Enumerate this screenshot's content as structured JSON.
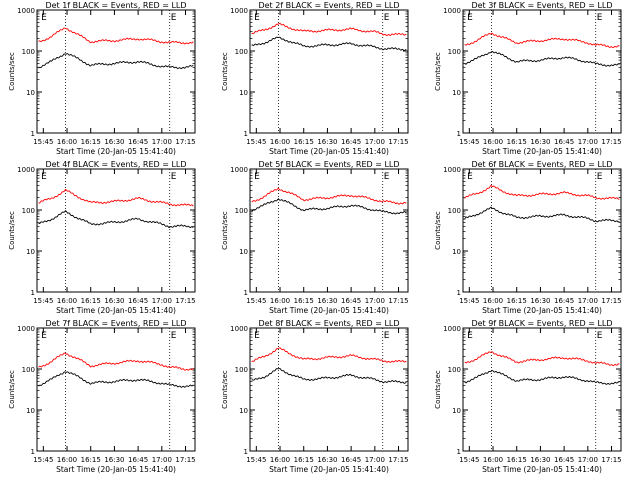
{
  "chart_data": [
    {
      "type": "line",
      "title": "Det 1f BLACK = Events, RED = LLD",
      "xlabel": "Start Time (20-Jan-05 15:41:40)",
      "ylabel": "Counts/sec",
      "x_ticks": [
        "15:45",
        "16:00",
        "16:15",
        "16:30",
        "16:45",
        "17:00",
        "17:15"
      ],
      "y_scale": "log",
      "ylim": [
        1,
        1000
      ],
      "y_ticks": [
        "1",
        "10",
        "100",
        "1000"
      ],
      "markers": [
        {
          "label": "E",
          "x": "15:43"
        },
        {
          "label": "E",
          "x": "17:05"
        }
      ],
      "vlines": [
        "15:59",
        "17:05"
      ],
      "series": [
        {
          "name": "LLD",
          "color": "#ff0000",
          "x": [
            "15:42",
            "15:50",
            "15:59",
            "16:05",
            "16:15",
            "16:30",
            "16:45",
            "17:00",
            "17:05",
            "17:15",
            "17:20"
          ],
          "values": [
            170,
            220,
            380,
            270,
            170,
            180,
            200,
            170,
            160,
            160,
            160
          ]
        },
        {
          "name": "Events",
          "color": "#000000",
          "x": [
            "15:42",
            "15:50",
            "15:59",
            "16:05",
            "16:15",
            "16:30",
            "16:45",
            "17:00",
            "17:05",
            "17:15",
            "17:20"
          ],
          "values": [
            40,
            55,
            90,
            70,
            45,
            50,
            55,
            42,
            40,
            40,
            42
          ]
        }
      ]
    },
    {
      "type": "line",
      "title": "Det 2f BLACK = Events, RED = LLD",
      "xlabel": "Start Time (20-Jan-05 15:41:40)",
      "ylabel": "Counts/sec",
      "x_ticks": [
        "15:45",
        "16:00",
        "16:15",
        "16:30",
        "16:45",
        "17:00",
        "17:15"
      ],
      "y_scale": "log",
      "ylim": [
        1,
        1000
      ],
      "y_ticks": [
        "1",
        "10",
        "100",
        "1000"
      ],
      "markers": [
        {
          "label": "E",
          "x": "15:43"
        },
        {
          "label": "E",
          "x": "17:05"
        }
      ],
      "vlines": [
        "15:59",
        "17:05"
      ],
      "series": [
        {
          "name": "LLD",
          "color": "#ff0000",
          "x": [
            "15:42",
            "15:50",
            "15:59",
            "16:05",
            "16:15",
            "16:30",
            "16:45",
            "17:00",
            "17:05",
            "17:15",
            "17:20"
          ],
          "values": [
            260,
            330,
            450,
            380,
            300,
            320,
            340,
            290,
            260,
            250,
            250
          ]
        },
        {
          "name": "Events",
          "color": "#000000",
          "x": [
            "15:42",
            "15:50",
            "15:59",
            "16:05",
            "16:15",
            "16:30",
            "16:45",
            "17:00",
            "17:05",
            "17:15",
            "17:20"
          ],
          "values": [
            130,
            160,
            210,
            180,
            130,
            140,
            150,
            125,
            115,
            110,
            110
          ]
        }
      ]
    },
    {
      "type": "line",
      "title": "Det 3f BLACK = Events, RED = LLD",
      "xlabel": "Start Time (20-Jan-05 15:41:40)",
      "ylabel": "Counts/sec",
      "x_ticks": [
        "15:45",
        "16:00",
        "16:15",
        "16:30",
        "16:45",
        "17:00",
        "17:15"
      ],
      "y_scale": "log",
      "ylim": [
        1,
        1000
      ],
      "y_ticks": [
        "1",
        "10",
        "100",
        "1000"
      ],
      "markers": [
        {
          "label": "E",
          "x": "15:43"
        },
        {
          "label": "E",
          "x": "17:05"
        }
      ],
      "vlines": [
        "15:59",
        "17:05"
      ],
      "series": [
        {
          "name": "LLD",
          "color": "#ff0000",
          "x": [
            "15:42",
            "15:50",
            "15:59",
            "16:05",
            "16:15",
            "16:30",
            "16:45",
            "17:00",
            "17:05",
            "17:15",
            "17:20"
          ],
          "values": [
            140,
            180,
            280,
            220,
            160,
            180,
            200,
            160,
            140,
            130,
            130
          ]
        },
        {
          "name": "Events",
          "color": "#000000",
          "x": [
            "15:42",
            "15:50",
            "15:59",
            "16:05",
            "16:15",
            "16:30",
            "16:45",
            "17:00",
            "17:05",
            "17:15",
            "17:20"
          ],
          "values": [
            50,
            65,
            100,
            80,
            55,
            60,
            70,
            55,
            48,
            45,
            45
          ]
        }
      ]
    },
    {
      "type": "line",
      "title": "Det 4f BLACK = Events, RED = LLD",
      "xlabel": "Start Time (20-Jan-05 15:41:40)",
      "ylabel": "Counts/sec",
      "x_ticks": [
        "15:45",
        "16:00",
        "16:15",
        "16:30",
        "16:45",
        "17:00",
        "17:15"
      ],
      "y_scale": "log",
      "ylim": [
        1,
        1000
      ],
      "y_ticks": [
        "1",
        "10",
        "100",
        "1000"
      ],
      "markers": [
        {
          "label": "E",
          "x": "15:43"
        },
        {
          "label": "E",
          "x": "17:05"
        }
      ],
      "vlines": [
        "15:59",
        "17:05"
      ],
      "series": [
        {
          "name": "LLD",
          "color": "#ff0000",
          "x": [
            "15:42",
            "15:50",
            "15:59",
            "16:05",
            "16:15",
            "16:30",
            "16:45",
            "17:00",
            "17:05",
            "17:15",
            "17:20"
          ],
          "values": [
            150,
            190,
            300,
            230,
            150,
            160,
            190,
            150,
            140,
            130,
            130
          ]
        },
        {
          "name": "Events",
          "color": "#000000",
          "x": [
            "15:42",
            "15:50",
            "15:59",
            "16:05",
            "16:15",
            "16:30",
            "16:45",
            "17:00",
            "17:05",
            "17:15",
            "17:20"
          ],
          "values": [
            45,
            60,
            90,
            70,
            45,
            50,
            60,
            45,
            40,
            40,
            40
          ]
        }
      ]
    },
    {
      "type": "line",
      "title": "Det 5f BLACK = Events, RED = LLD",
      "xlabel": "Start Time (20-Jan-05 15:41:40)",
      "ylabel": "Counts/sec",
      "x_ticks": [
        "15:45",
        "16:00",
        "16:15",
        "16:30",
        "16:45",
        "17:00",
        "17:15"
      ],
      "y_scale": "log",
      "ylim": [
        1,
        1000
      ],
      "y_ticks": [
        "1",
        "10",
        "100",
        "1000"
      ],
      "markers": [
        {
          "label": "E",
          "x": "15:43"
        },
        {
          "label": "E",
          "x": "17:05"
        }
      ],
      "vlines": [
        "15:59",
        "17:05"
      ],
      "series": [
        {
          "name": "LLD",
          "color": "#ff0000",
          "x": [
            "15:42",
            "15:50",
            "15:59",
            "16:05",
            "16:15",
            "16:30",
            "16:45",
            "17:00",
            "17:05",
            "17:15",
            "17:20"
          ],
          "values": [
            160,
            210,
            340,
            270,
            180,
            200,
            230,
            180,
            160,
            150,
            150
          ]
        },
        {
          "name": "Events",
          "color": "#000000",
          "x": [
            "15:42",
            "15:50",
            "15:59",
            "16:05",
            "16:15",
            "16:30",
            "16:45",
            "17:00",
            "17:05",
            "17:15",
            "17:20"
          ],
          "values": [
            100,
            130,
            190,
            150,
            100,
            110,
            130,
            100,
            90,
            85,
            85
          ]
        }
      ]
    },
    {
      "type": "line",
      "title": "Det 6f BLACK = Events, RED = LLD",
      "xlabel": "Start Time (20-Jan-05 15:41:40)",
      "ylabel": "Counts/sec",
      "x_ticks": [
        "15:45",
        "16:00",
        "16:15",
        "16:30",
        "16:45",
        "17:00",
        "17:15"
      ],
      "y_scale": "log",
      "ylim": [
        1,
        1000
      ],
      "y_ticks": [
        "1",
        "10",
        "100",
        "1000"
      ],
      "markers": [
        {
          "label": "E",
          "x": "15:43"
        },
        {
          "label": "E",
          "x": "17:05"
        }
      ],
      "vlines": [
        "15:59",
        "17:05"
      ],
      "series": [
        {
          "name": "LLD",
          "color": "#ff0000",
          "x": [
            "15:42",
            "15:50",
            "15:59",
            "16:05",
            "16:15",
            "16:30",
            "16:45",
            "17:00",
            "17:05",
            "17:15",
            "17:20"
          ],
          "values": [
            200,
            250,
            380,
            300,
            220,
            240,
            260,
            220,
            200,
            190,
            190
          ]
        },
        {
          "name": "Events",
          "color": "#000000",
          "x": [
            "15:42",
            "15:50",
            "15:59",
            "16:05",
            "16:15",
            "16:30",
            "16:45",
            "17:00",
            "17:05",
            "17:15",
            "17:20"
          ],
          "values": [
            60,
            80,
            110,
            90,
            65,
            70,
            75,
            62,
            55,
            55,
            55
          ]
        }
      ]
    },
    {
      "type": "line",
      "title": "Det 7f BLACK = Events, RED = LLD",
      "xlabel": "Start Time (20-Jan-05 15:41:40)",
      "ylabel": "Counts/sec",
      "x_ticks": [
        "15:45",
        "16:00",
        "16:15",
        "16:30",
        "16:45",
        "17:00",
        "17:15"
      ],
      "y_scale": "log",
      "ylim": [
        1,
        1000
      ],
      "y_ticks": [
        "1",
        "10",
        "100",
        "1000"
      ],
      "markers": [
        {
          "label": "E",
          "x": "15:43"
        },
        {
          "label": "E",
          "x": "17:05"
        }
      ],
      "vlines": [
        "15:59",
        "17:05"
      ],
      "series": [
        {
          "name": "LLD",
          "color": "#ff0000",
          "x": [
            "15:42",
            "15:50",
            "15:59",
            "16:05",
            "16:15",
            "16:30",
            "16:45",
            "17:00",
            "17:05",
            "17:15",
            "17:20"
          ],
          "values": [
            110,
            150,
            250,
            190,
            120,
            140,
            160,
            130,
            110,
            100,
            100
          ]
        },
        {
          "name": "Events",
          "color": "#000000",
          "x": [
            "15:42",
            "15:50",
            "15:59",
            "16:05",
            "16:15",
            "16:30",
            "16:45",
            "17:00",
            "17:05",
            "17:15",
            "17:20"
          ],
          "values": [
            40,
            55,
            90,
            70,
            45,
            50,
            55,
            45,
            40,
            38,
            38
          ]
        }
      ]
    },
    {
      "type": "line",
      "title": "Det 8f BLACK = Events, RED = LLD",
      "xlabel": "Start Time (20-Jan-05 15:41:40)",
      "ylabel": "Counts/sec",
      "x_ticks": [
        "15:45",
        "16:00",
        "16:15",
        "16:30",
        "16:45",
        "17:00",
        "17:15"
      ],
      "y_scale": "log",
      "ylim": [
        1,
        1000
      ],
      "y_ticks": [
        "1",
        "10",
        "100",
        "1000"
      ],
      "markers": [
        {
          "label": "E",
          "x": "15:43"
        },
        {
          "label": "E",
          "x": "17:05"
        }
      ],
      "vlines": [
        "15:59",
        "17:05"
      ],
      "series": [
        {
          "name": "LLD",
          "color": "#ff0000",
          "x": [
            "15:42",
            "15:50",
            "15:59",
            "16:05",
            "16:15",
            "16:30",
            "16:45",
            "17:00",
            "17:05",
            "17:15",
            "17:20"
          ],
          "values": [
            150,
            200,
            320,
            250,
            170,
            190,
            210,
            170,
            160,
            150,
            150
          ]
        },
        {
          "name": "Events",
          "color": "#000000",
          "x": [
            "15:42",
            "15:50",
            "15:59",
            "16:05",
            "16:15",
            "16:30",
            "16:45",
            "17:00",
            "17:05",
            "17:15",
            "17:20"
          ],
          "values": [
            50,
            65,
            100,
            80,
            55,
            60,
            70,
            55,
            50,
            48,
            48
          ]
        }
      ]
    },
    {
      "type": "line",
      "title": "Det 9f BLACK = Events, RED = LLD",
      "xlabel": "Start Time (20-Jan-05 15:41:40)",
      "ylabel": "Counts/sec",
      "x_ticks": [
        "15:45",
        "16:00",
        "16:15",
        "16:30",
        "16:45",
        "17:00",
        "17:15"
      ],
      "y_scale": "log",
      "ylim": [
        1,
        1000
      ],
      "y_ticks": [
        "1",
        "10",
        "100",
        "1000"
      ],
      "markers": [
        {
          "label": "E",
          "x": "15:43"
        },
        {
          "label": "E",
          "x": "17:05"
        }
      ],
      "vlines": [
        "15:59",
        "17:05"
      ],
      "series": [
        {
          "name": "LLD",
          "color": "#ff0000",
          "x": [
            "15:42",
            "15:50",
            "15:59",
            "16:05",
            "16:15",
            "16:30",
            "16:45",
            "17:00",
            "17:05",
            "17:15",
            "17:20"
          ],
          "values": [
            140,
            180,
            270,
            210,
            150,
            170,
            190,
            160,
            140,
            130,
            130
          ]
        },
        {
          "name": "Events",
          "color": "#000000",
          "x": [
            "15:42",
            "15:50",
            "15:59",
            "16:05",
            "16:15",
            "16:30",
            "16:45",
            "17:00",
            "17:05",
            "17:15",
            "17:20"
          ],
          "values": [
            48,
            62,
            95,
            75,
            52,
            56,
            65,
            52,
            46,
            45,
            45
          ]
        }
      ]
    }
  ]
}
